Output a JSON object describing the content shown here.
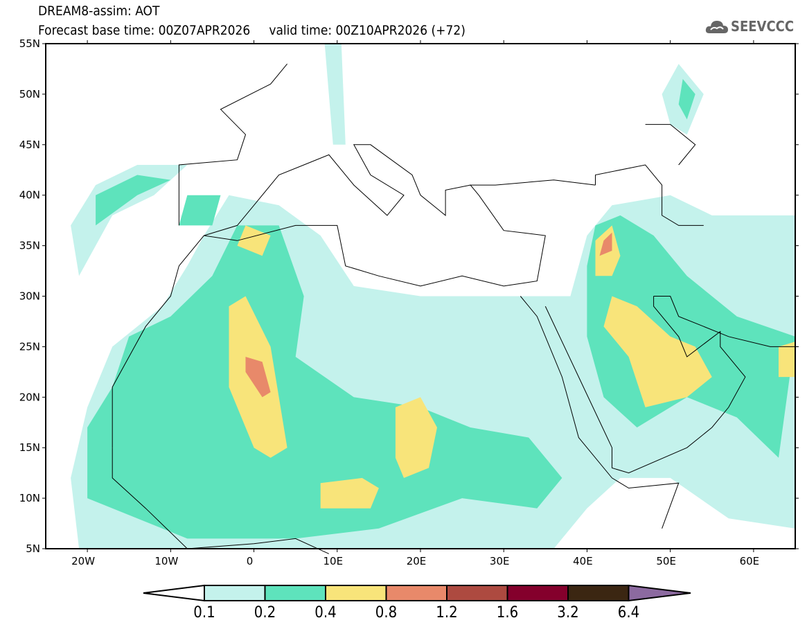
{
  "header": {
    "title": "DREAM8-assim: AOT",
    "forecast_base": "Forecast base time: 00Z07APR2026",
    "valid_time": "valid time: 00Z10APR2026 (+72)",
    "logo_text": "SEEVCCC",
    "logo_icon": "cloud-icon"
  },
  "map": {
    "lon_range": [
      -25,
      65
    ],
    "lat_range": [
      5,
      55
    ],
    "lat_labels": [
      "5N",
      "10N",
      "15N",
      "20N",
      "25N",
      "30N",
      "35N",
      "40N",
      "45N",
      "50N",
      "55N"
    ],
    "lon_labels": [
      "20W",
      "10W",
      "0",
      "10E",
      "20E",
      "30E",
      "40E",
      "50E",
      "60E"
    ]
  },
  "colorbar": {
    "levels": [
      "0.1",
      "0.2",
      "0.4",
      "0.8",
      "1.2",
      "1.6",
      "3.2",
      "6.4"
    ],
    "colors": [
      "#ffffff",
      "#c4f2ec",
      "#5ee3bc",
      "#f8e47a",
      "#e8896a",
      "#ad4a40",
      "#84002c",
      "#3b2612",
      "#8c6aa0"
    ]
  }
}
